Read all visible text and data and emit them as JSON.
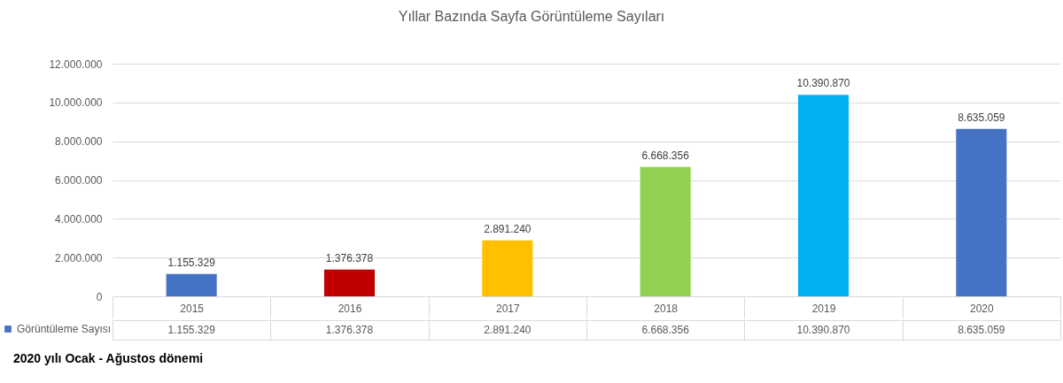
{
  "chart_data": {
    "type": "bar",
    "title": "Yıllar Bazında Sayfa Görüntüleme Sayıları",
    "categories": [
      "2015",
      "2016",
      "2017",
      "2018",
      "2019",
      "2020"
    ],
    "series": [
      {
        "name": "Görüntüleme Sayısı",
        "color": "#4472c4",
        "colors": [
          "#4472c4",
          "#c00000",
          "#ffc000",
          "#92d050",
          "#00b0f0",
          "#4472c4"
        ],
        "values": [
          1155329,
          1376378,
          2891240,
          6668356,
          10390870,
          8635059
        ],
        "value_labels": [
          "1.155.329",
          "1.376.378",
          "2.891.240",
          "6.668.356",
          "10.390.870",
          "8.635.059"
        ]
      }
    ],
    "ylim": [
      0,
      12000000
    ],
    "yticks": [
      0,
      {
        "value": 2000000,
        "label": "2.000.000"
      },
      {
        "value": 4000000,
        "label": "4.000.000"
      },
      {
        "value": 6000000,
        "label": "6.000.000"
      },
      {
        "value": 8000000,
        "label": "8.000.000"
      },
      {
        "value": 10000000,
        "label": "10.000.000"
      },
      {
        "value": 12000000,
        "label": "12.000.000"
      }
    ],
    "grid": "y",
    "legend": "bottom left",
    "annotations": [
      "2020 yılı Ocak - Ağustos dönemi"
    ]
  }
}
